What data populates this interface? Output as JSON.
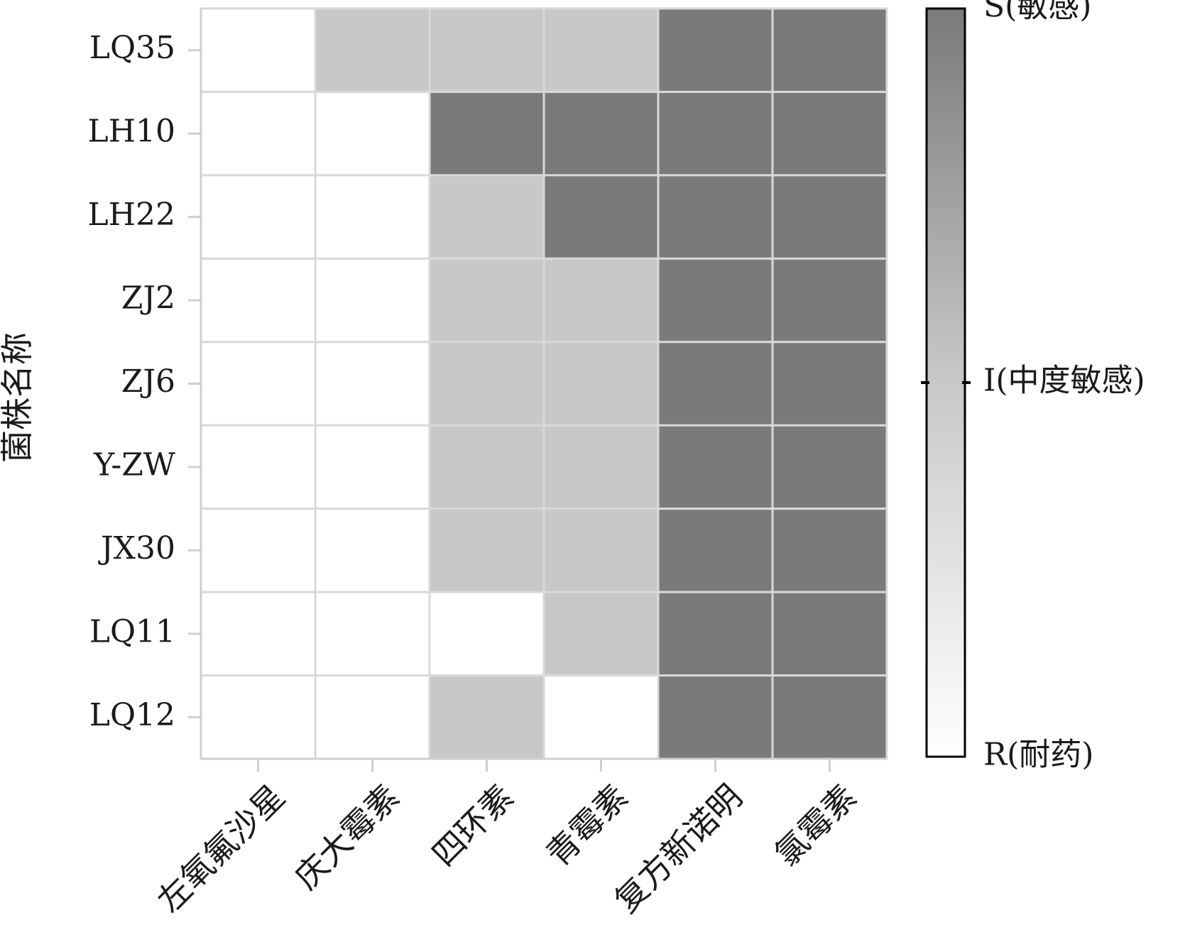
{
  "chart_data": {
    "type": "heatmap",
    "ylabel": "菌株名称",
    "xlabel": "",
    "title": "",
    "rows": [
      "LQ35",
      "LH10",
      "LH22",
      "ZJ2",
      "ZJ6",
      "Y-ZW",
      "JX30",
      "LQ11",
      "LQ12"
    ],
    "columns": [
      "左氧氟沙星",
      "庆大霉素",
      "四环素",
      "青霉素",
      "复方新诺明",
      "氯霉素"
    ],
    "scale": {
      "min": 0,
      "max": 2,
      "ticks": [
        0,
        1,
        2
      ],
      "tick_labels": [
        "R(耐药)",
        "I(中度敏感)",
        "S(敏感)"
      ]
    },
    "values": [
      [
        0,
        1,
        1,
        1,
        2,
        2
      ],
      [
        0,
        0,
        2,
        2,
        2,
        2
      ],
      [
        0,
        0,
        1,
        2,
        2,
        2
      ],
      [
        0,
        0,
        1,
        1,
        2,
        2
      ],
      [
        0,
        0,
        1,
        1,
        2,
        2
      ],
      [
        0,
        0,
        1,
        1,
        2,
        2
      ],
      [
        0,
        0,
        1,
        1,
        2,
        2
      ],
      [
        0,
        0,
        0,
        1,
        2,
        2
      ],
      [
        0,
        0,
        1,
        0,
        2,
        2
      ]
    ],
    "colors": {
      "R": "#ffffff",
      "I": "#c8c8c8",
      "S": "#7a7a7a",
      "cell_border": "#d9d9d9",
      "axis": "#cfcfcf"
    },
    "grid": true,
    "legend": "right"
  }
}
